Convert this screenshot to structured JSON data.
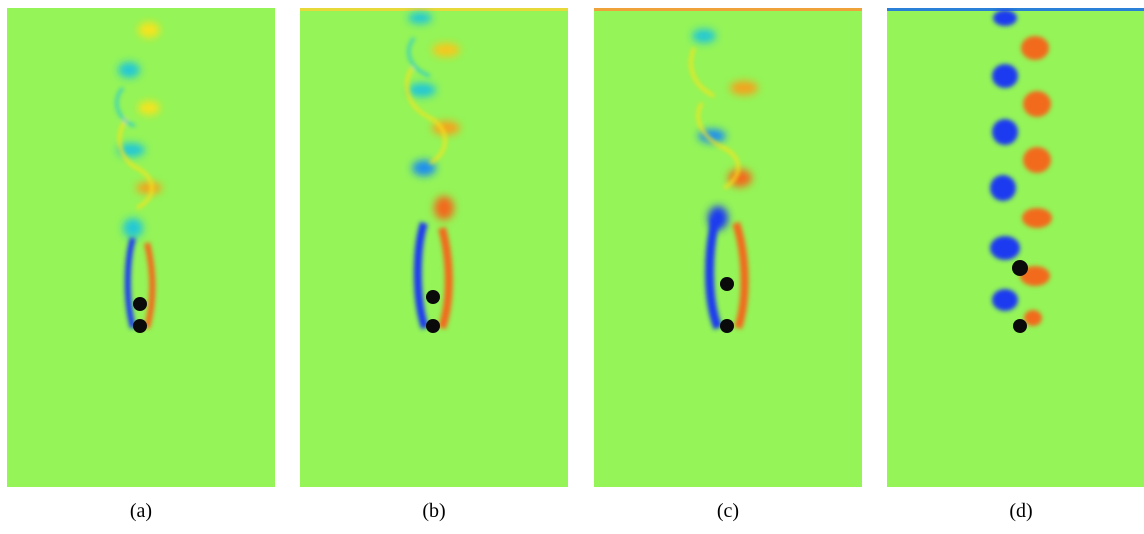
{
  "panels": [
    {
      "caption": "(a)"
    },
    {
      "caption": "(b)"
    },
    {
      "caption": "(c)"
    },
    {
      "caption": "(d)"
    }
  ],
  "colors": {
    "background_field": "#94f458",
    "positive_vortex": "#f26a1b",
    "positive_weak": "#f5e41e",
    "negative_vortex": "#1a3bf0",
    "negative_weak": "#21c8d6",
    "cylinder": "#0a0a0a"
  }
}
